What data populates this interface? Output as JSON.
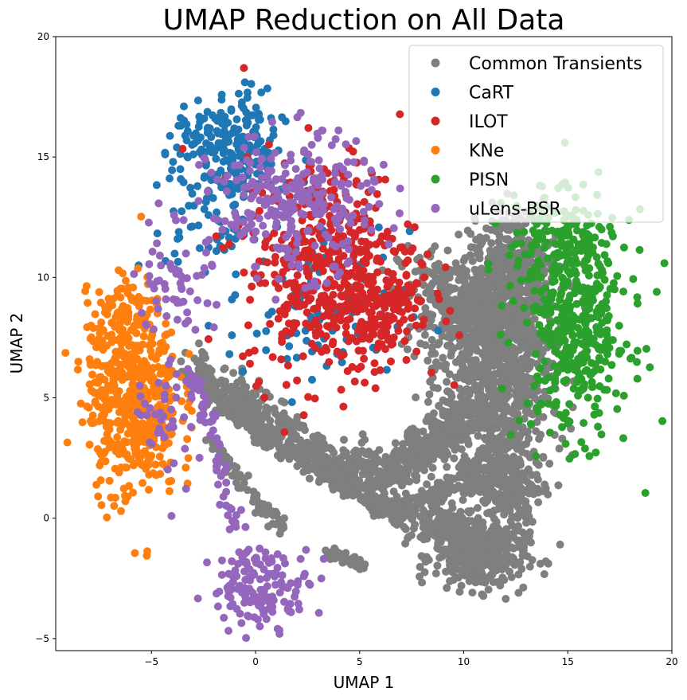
{
  "chart_data": {
    "type": "scatter",
    "title": "UMAP Reduction on All Data",
    "xlabel": "UMAP 1",
    "ylabel": "UMAP 2",
    "xlim": [
      -9.6,
      20
    ],
    "ylim": [
      -5.5,
      20
    ],
    "xticks": [
      -5,
      0,
      5,
      10,
      15,
      20
    ],
    "yticks": [
      -5,
      0,
      5,
      10,
      15,
      20
    ],
    "xtick_labels": [
      "−5",
      "0",
      "5",
      "10",
      "15",
      "20"
    ],
    "ytick_labels": [
      "−5",
      "0",
      "5",
      "10",
      "15",
      "20"
    ],
    "grid": false,
    "legend": "top-right",
    "series": [
      {
        "name": "Common Transients",
        "color": "#7f7f7f",
        "clusters": [
          {
            "cx": 11.4,
            "cy": 7.0,
            "sx": 1.4,
            "sy": 2.2,
            "n": 700
          },
          {
            "cx": 9.5,
            "cy": 9.0,
            "sx": 1.3,
            "sy": 1.2,
            "n": 250
          },
          {
            "cx": 12.8,
            "cy": 6.5,
            "sx": 0.9,
            "sy": 2.6,
            "n": 300
          },
          {
            "cx": 10.8,
            "cy": -1.6,
            "sx": 1.1,
            "sy": 0.7,
            "n": 320
          },
          {
            "cx": 11.8,
            "cy": 1.5,
            "sx": 1.0,
            "sy": 1.2,
            "n": 250
          },
          {
            "cx": 12.5,
            "cy": 10.5,
            "sx": 0.8,
            "sy": 1.2,
            "n": 200
          },
          {
            "cx": 9.0,
            "cy": -0.4,
            "sx": 0.9,
            "sy": 0.4,
            "n": 120
          }
        ],
        "paths": [
          {
            "pts": [
              [
                -3.0,
                6.2
              ],
              [
                -1.0,
                5.2
              ],
              [
                1.0,
                4.0
              ],
              [
                3.0,
                2.6
              ],
              [
                5.0,
                2.0
              ],
              [
                6.5,
                2.0
              ],
              [
                8.0,
                2.6
              ],
              [
                9.5,
                3.6
              ],
              [
                10.5,
                4.8
              ]
            ],
            "n": 650,
            "w": 0.45
          },
          {
            "pts": [
              [
                -2.6,
                5.6
              ],
              [
                -1.0,
                4.3
              ],
              [
                1.0,
                3.1
              ],
              [
                3.0,
                2.0
              ],
              [
                4.8,
                1.2
              ]
            ],
            "n": 260,
            "w": 0.22
          },
          {
            "pts": [
              [
                -2.0,
                3.2
              ],
              [
                -1.0,
                1.8
              ],
              [
                0.2,
                0.6
              ],
              [
                1.4,
                -0.4
              ]
            ],
            "n": 80,
            "w": 0.15
          },
          {
            "pts": [
              [
                3.3,
                -1.3
              ],
              [
                4.3,
                -1.7
              ],
              [
                5.2,
                -2.0
              ]
            ],
            "n": 40,
            "w": 0.12
          },
          {
            "pts": [
              [
                5.0,
                1.2
              ],
              [
                6.0,
                0.4
              ],
              [
                7.0,
                0.3
              ],
              [
                8.5,
                0.8
              ],
              [
                10.0,
                1.6
              ],
              [
                11.2,
                2.6
              ]
            ],
            "n": 260,
            "w": 0.22
          },
          {
            "pts": [
              [
                7.5,
                2.8
              ],
              [
                8.8,
                3.4
              ],
              [
                9.6,
                4.3
              ]
            ],
            "n": 120,
            "w": 0.35
          }
        ]
      },
      {
        "name": "CaRT",
        "color": "#1f77b4",
        "clusters": [
          {
            "cx": -1.3,
            "cy": 15.2,
            "sx": 1.3,
            "sy": 1.2,
            "n": 240
          },
          {
            "cx": 3.0,
            "cy": 8.5,
            "sx": 2.2,
            "sy": 1.7,
            "n": 90
          },
          {
            "cx": -2.3,
            "cy": 12.0,
            "sx": 1.0,
            "sy": 1.0,
            "n": 40
          }
        ],
        "paths": []
      },
      {
        "name": "ILOT",
        "color": "#d62728",
        "clusters": [
          {
            "cx": 3.6,
            "cy": 10.5,
            "sx": 2.1,
            "sy": 2.3,
            "n": 460
          },
          {
            "cx": 5.5,
            "cy": 8.6,
            "sx": 1.3,
            "sy": 1.0,
            "n": 130
          }
        ],
        "paths": []
      },
      {
        "name": "KNe",
        "color": "#ff7f0e",
        "clusters": [
          {
            "cx": -5.9,
            "cy": 5.0,
            "sx": 1.1,
            "sy": 2.1,
            "n": 520
          },
          {
            "cx": -6.3,
            "cy": 8.2,
            "sx": 0.8,
            "sy": 0.8,
            "n": 60
          }
        ],
        "paths": []
      },
      {
        "name": "PISN",
        "color": "#2ca02c",
        "clusters": [
          {
            "cx": 15.4,
            "cy": 8.0,
            "sx": 1.3,
            "sy": 2.3,
            "n": 420
          },
          {
            "cx": 14.5,
            "cy": 11.5,
            "sx": 1.2,
            "sy": 1.0,
            "n": 120
          }
        ],
        "paths": []
      },
      {
        "name": "uLens-BSR",
        "color": "#9467bd",
        "clusters": [
          {
            "cx": 1.8,
            "cy": 13.0,
            "sx": 2.0,
            "sy": 1.4,
            "n": 280
          },
          {
            "cx": 0.3,
            "cy": -2.8,
            "sx": 1.2,
            "sy": 0.8,
            "n": 150
          },
          {
            "cx": -3.9,
            "cy": 10.0,
            "sx": 0.9,
            "sy": 1.3,
            "n": 60
          },
          {
            "cx": -4.2,
            "cy": 4.5,
            "sx": 0.8,
            "sy": 1.5,
            "n": 40
          }
        ],
        "paths": [
          {
            "pts": [
              [
                -3.3,
                6.1
              ],
              [
                -2.3,
                4.5
              ],
              [
                -1.7,
                2.3
              ],
              [
                -1.5,
                0.5
              ],
              [
                -0.8,
                -0.5
              ]
            ],
            "n": 60,
            "w": 0.2
          }
        ]
      }
    ]
  }
}
